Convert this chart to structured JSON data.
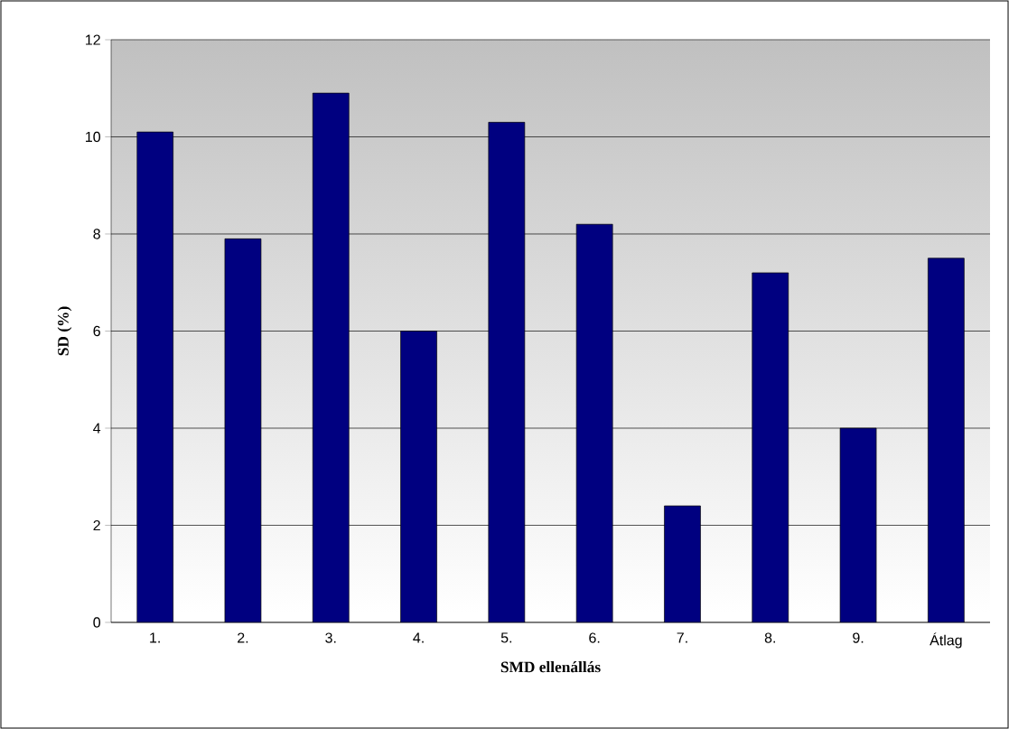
{
  "chart_data": {
    "type": "bar",
    "xlabel": "SMD ellenállás",
    "ylabel": "SD (%)",
    "categories": [
      "1.",
      "2.",
      "3.",
      "4.",
      "5.",
      "6.",
      "7.",
      "8.",
      "9.",
      "Átlag"
    ],
    "values": [
      10.1,
      7.9,
      10.9,
      6.0,
      10.3,
      8.2,
      2.4,
      7.2,
      4.0,
      7.5
    ],
    "color": "#000080",
    "ylim": [
      0,
      12
    ],
    "yticks": [
      0,
      2,
      4,
      6,
      8,
      10,
      12
    ],
    "grid": "y"
  }
}
